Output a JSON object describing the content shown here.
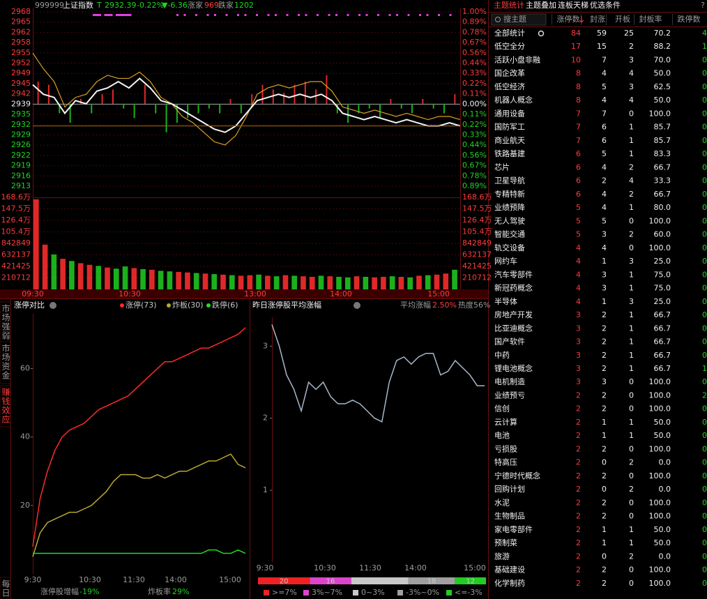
{
  "header": {
    "code": "999999",
    "name": "上证指数",
    "flag": "T",
    "price": "2932.39",
    "change_pct": "-0.22%",
    "change": "▼-6.36",
    "up_label": "涨家",
    "up_count": "969",
    "down_label": "跌家",
    "down_count": "1202"
  },
  "index_chart": {
    "ylim": [
      2913,
      2968
    ],
    "base": 2939,
    "price_labels": [
      "2968",
      "2965",
      "2962",
      "2958",
      "2955",
      "2952",
      "2949",
      "2945",
      "2942",
      "2939",
      "2935",
      "2932",
      "2929",
      "2926",
      "2922",
      "2919",
      "2916",
      "2913"
    ],
    "pct_labels": [
      "1.00%",
      "0.89%",
      "0.78%",
      "0.67%",
      "0.56%",
      "0.44%",
      "0.33%",
      "0.22%",
      "0.11%",
      "0.00%",
      "0.11%",
      "0.22%",
      "0.33%",
      "0.44%",
      "0.56%",
      "0.67%",
      "0.78%",
      "0.89%"
    ],
    "volume_labels": [
      "168.6万",
      "147.5万",
      "126.4万",
      "105.4万",
      "842849",
      "632137",
      "421425",
      "210712"
    ],
    "vol_ylim": [
      0,
      1685696
    ],
    "time_labels": [
      "09:30",
      "10:30",
      "13:00",
      "14:00",
      "15:00"
    ],
    "index_line": [
      2945,
      2942,
      2941,
      2936,
      2940,
      2939,
      2943,
      2944,
      2946,
      2944,
      2947,
      2944,
      2940,
      2939,
      2937,
      2935,
      2933,
      2931,
      2930,
      2932,
      2936,
      2940,
      2941,
      2942,
      2941,
      2942,
      2941,
      2942,
      2940,
      2936,
      2935,
      2934,
      2935,
      2934,
      2933,
      2934,
      2933,
      2932,
      2932,
      2933,
      2932
    ],
    "avg_line": [
      2955,
      2950,
      2946,
      2938,
      2941,
      2942,
      2946,
      2948,
      2947,
      2947,
      2949,
      2946,
      2941,
      2939,
      2935,
      2933,
      2930,
      2927,
      2926,
      2929,
      2935,
      2942,
      2944,
      2945,
      2944,
      2945,
      2946,
      2946,
      2943,
      2938,
      2937,
      2936,
      2937,
      2936,
      2935,
      2936,
      2935,
      2934,
      2935,
      2935,
      2934
    ],
    "diff_bars": [
      7,
      6,
      -3,
      -6,
      1.5,
      -3,
      3,
      4.5,
      -1.5,
      -4.5,
      6,
      -3,
      -9,
      -6,
      -4.5,
      -3,
      -1.5,
      -3,
      1.5,
      -3,
      3,
      6,
      4.5,
      3.5,
      6,
      7,
      4.5,
      9,
      -3,
      -6,
      -3,
      -1.5,
      -4.5,
      1.5,
      -1.5,
      -3,
      1.5,
      -1.5,
      -3,
      3
    ],
    "volume": [
      1650000,
      820000,
      640000,
      560000,
      520000,
      480000,
      450000,
      430000,
      400000,
      380000,
      420000,
      390000,
      370000,
      360000,
      340000,
      330000,
      320000,
      310000,
      300000,
      290000,
      280000,
      270000,
      260000,
      250000,
      260000,
      270000,
      250000,
      240000,
      260000,
      250000,
      240000,
      230000,
      250000,
      240000,
      230000,
      220000,
      240000,
      230000,
      220000,
      230000,
      240000,
      230000,
      220000,
      250000,
      260000,
      270000,
      290000,
      360000
    ],
    "volume_up": [
      1,
      1,
      0,
      1,
      0,
      1,
      1,
      0,
      1,
      0,
      0,
      1,
      0,
      1,
      0,
      0,
      1,
      1,
      0,
      1,
      0,
      1,
      0,
      1,
      1,
      0,
      1,
      0,
      1,
      0,
      1,
      1,
      0,
      1,
      0,
      0,
      1,
      0,
      1,
      1,
      0,
      1,
      0,
      1,
      0,
      1,
      1,
      0
    ]
  },
  "side_tabs": [
    "市场强弱",
    "市场资金",
    "赚钱效应",
    "每日"
  ],
  "limit_chart": {
    "title": "涨停对比",
    "ylim": [
      0,
      76
    ],
    "yticks": [
      20,
      40,
      60
    ],
    "time_labels": [
      "9:30",
      "10:30",
      "11:30",
      "14:00",
      "15:00"
    ],
    "series": [
      {
        "name": "涨停(73)",
        "color": "#ff2a2a",
        "values": [
          8,
          22,
          30,
          36,
          40,
          42,
          43,
          44,
          46,
          48,
          49,
          50,
          51,
          52,
          54,
          56,
          58,
          60,
          62,
          62,
          63,
          64,
          65,
          66,
          66,
          67,
          68,
          69,
          70,
          72
        ]
      },
      {
        "name": "炸板(30)",
        "color": "#b8a830",
        "values": [
          5,
          12,
          15,
          16,
          17,
          18,
          18,
          19,
          20,
          22,
          24,
          27,
          29,
          29,
          29,
          28,
          28,
          29,
          28,
          29,
          30,
          30,
          31,
          32,
          33,
          33,
          34,
          35,
          32,
          31
        ]
      },
      {
        "name": "跌停(6)",
        "color": "#22dd22",
        "values": [
          6,
          6,
          6,
          6,
          6,
          6,
          6,
          6,
          6,
          6,
          6,
          6,
          6,
          6,
          6,
          6,
          6,
          6,
          6,
          6,
          6,
          6,
          6,
          6,
          7,
          7,
          6,
          6,
          7,
          6
        ]
      }
    ],
    "footer_label1": "涨停股增幅",
    "footer_value1": "-19%",
    "footer_label2": "炸板率",
    "footer_value2": "29%"
  },
  "yest_chart": {
    "title": "昨日涨停股平均涨幅",
    "avg_label": "平均涨幅",
    "avg_value": "2.50%",
    "heat": "热度56%",
    "ylim": [
      0,
      3.4
    ],
    "yticks": [
      1,
      2,
      3
    ],
    "time_labels": [
      "9:30",
      "10:30",
      "11:30",
      "14:00",
      "15:00"
    ],
    "line": {
      "color": "#a8b8cc",
      "values": [
        3.3,
        3.0,
        2.6,
        2.4,
        2.1,
        2.5,
        2.4,
        2.5,
        2.3,
        2.2,
        2.2,
        2.25,
        2.2,
        2.1,
        2.0,
        1.95,
        2.5,
        2.8,
        2.85,
        2.75,
        2.85,
        2.9,
        2.9,
        2.6,
        2.65,
        2.8,
        2.7,
        2.6,
        2.45,
        2.45
      ]
    },
    "distribution": [
      {
        "name": ">=7%",
        "color": "#ee2222",
        "value": 20
      },
      {
        "name": "3%~7%",
        "color": "#dd44cc",
        "value": 16
      },
      {
        "name": "0~3%",
        "color": "#c8c8c8",
        "value": 22
      },
      {
        "name": "-3%~0%",
        "color": "#a0a0a0",
        "value": 18
      },
      {
        "name": "<=-3%",
        "color": "#22cc22",
        "value": 12
      }
    ]
  },
  "theme_panel": {
    "tabs": [
      "主题统计",
      "主题叠加",
      "连板天梯",
      "优选条件"
    ],
    "help": "?",
    "search": "搜主题",
    "columns": [
      "涨停数",
      "封涨",
      "开板",
      "封板率",
      "跌停数"
    ],
    "rows": [
      [
        "全部统计",
        "84",
        "59",
        "25",
        "70.2",
        "4"
      ],
      [
        "低空全分",
        "17",
        "15",
        "2",
        "88.2",
        "1"
      ],
      [
        "活跃小盘非融",
        "10",
        "7",
        "3",
        "70.0",
        "0"
      ],
      [
        "国企改革",
        "8",
        "4",
        "4",
        "50.0",
        "0"
      ],
      [
        "低空经济",
        "8",
        "5",
        "3",
        "62.5",
        "0"
      ],
      [
        "机器人概念",
        "8",
        "4",
        "4",
        "50.0",
        "0"
      ],
      [
        "通用设备",
        "7",
        "7",
        "0",
        "100.0",
        "0"
      ],
      [
        "国防军工",
        "7",
        "6",
        "1",
        "85.7",
        "0"
      ],
      [
        "商业航天",
        "7",
        "6",
        "1",
        "85.7",
        "0"
      ],
      [
        "铁路基建",
        "6",
        "5",
        "1",
        "83.3",
        "0"
      ],
      [
        "芯片",
        "6",
        "4",
        "2",
        "66.7",
        "0"
      ],
      [
        "卫星导航",
        "6",
        "2",
        "4",
        "33.3",
        "0"
      ],
      [
        "专精特新",
        "6",
        "4",
        "2",
        "66.7",
        "0"
      ],
      [
        "业绩预降",
        "5",
        "4",
        "1",
        "80.0",
        "0"
      ],
      [
        "无人驾驶",
        "5",
        "5",
        "0",
        "100.0",
        "0"
      ],
      [
        "智能交通",
        "5",
        "3",
        "2",
        "60.0",
        "0"
      ],
      [
        "轨交设备",
        "4",
        "4",
        "0",
        "100.0",
        "0"
      ],
      [
        "网约车",
        "4",
        "1",
        "3",
        "25.0",
        "0"
      ],
      [
        "汽车零部件",
        "4",
        "3",
        "1",
        "75.0",
        "0"
      ],
      [
        "新冠药概念",
        "4",
        "3",
        "1",
        "75.0",
        "0"
      ],
      [
        "半导体",
        "4",
        "1",
        "3",
        "25.0",
        "0"
      ],
      [
        "房地产开发",
        "3",
        "2",
        "1",
        "66.7",
        "0"
      ],
      [
        "比亚迪概念",
        "3",
        "2",
        "1",
        "66.7",
        "0"
      ],
      [
        "国产软件",
        "3",
        "2",
        "1",
        "66.7",
        "0"
      ],
      [
        "中药",
        "3",
        "2",
        "1",
        "66.7",
        "0"
      ],
      [
        "锂电池概念",
        "3",
        "2",
        "1",
        "66.7",
        "1"
      ],
      [
        "电机制造",
        "3",
        "3",
        "0",
        "100.0",
        "0"
      ],
      [
        "业绩预亏",
        "2",
        "2",
        "0",
        "100.0",
        "2"
      ],
      [
        "信创",
        "2",
        "2",
        "0",
        "100.0",
        "0"
      ],
      [
        "云计算",
        "2",
        "1",
        "1",
        "50.0",
        "0"
      ],
      [
        "电池",
        "2",
        "1",
        "1",
        "50.0",
        "0"
      ],
      [
        "亏损股",
        "2",
        "2",
        "0",
        "100.0",
        "0"
      ],
      [
        "特高压",
        "2",
        "0",
        "2",
        "0.0",
        "0"
      ],
      [
        "宁德时代概念",
        "2",
        "2",
        "0",
        "100.0",
        "0"
      ],
      [
        "回购计划",
        "2",
        "0",
        "2",
        "0.0",
        "0"
      ],
      [
        "水泥",
        "2",
        "2",
        "0",
        "100.0",
        "0"
      ],
      [
        "生物制品",
        "2",
        "2",
        "0",
        "100.0",
        "0"
      ],
      [
        "家电零部件",
        "2",
        "1",
        "1",
        "50.0",
        "0"
      ],
      [
        "预制菜",
        "2",
        "1",
        "1",
        "50.0",
        "0"
      ],
      [
        "旅游",
        "2",
        "0",
        "2",
        "0.0",
        "0"
      ],
      [
        "基础建设",
        "2",
        "2",
        "0",
        "100.0",
        "0"
      ],
      [
        "化学制药",
        "2",
        "2",
        "0",
        "100.0",
        "0"
      ]
    ]
  }
}
